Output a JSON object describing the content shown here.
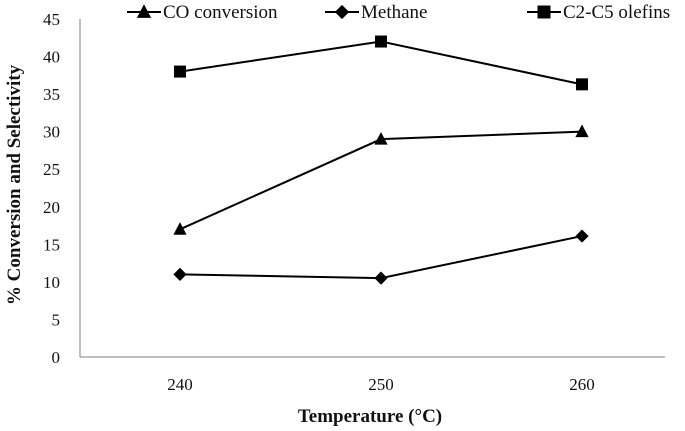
{
  "chart_data": {
    "type": "line",
    "title": "",
    "xlabel": "Temperature (°C)",
    "ylabel": "% Conversion and Selectivity",
    "categories": [
      "240",
      "250",
      "260"
    ],
    "ylim": [
      0,
      45
    ],
    "yticks": [
      "0",
      "5",
      "10",
      "15",
      "20",
      "25",
      "30",
      "35",
      "40",
      "45"
    ],
    "grid": false,
    "legend_position": "top",
    "series": [
      {
        "name": "CO conversion",
        "marker": "triangle",
        "values": [
          17,
          29,
          30
        ]
      },
      {
        "name": "Methane",
        "marker": "diamond",
        "values": [
          11,
          10.5,
          16.1
        ]
      },
      {
        "name": "C2-C5 olefins",
        "marker": "square",
        "values": [
          38,
          42,
          36.3
        ]
      }
    ],
    "line_color": "#000000"
  }
}
